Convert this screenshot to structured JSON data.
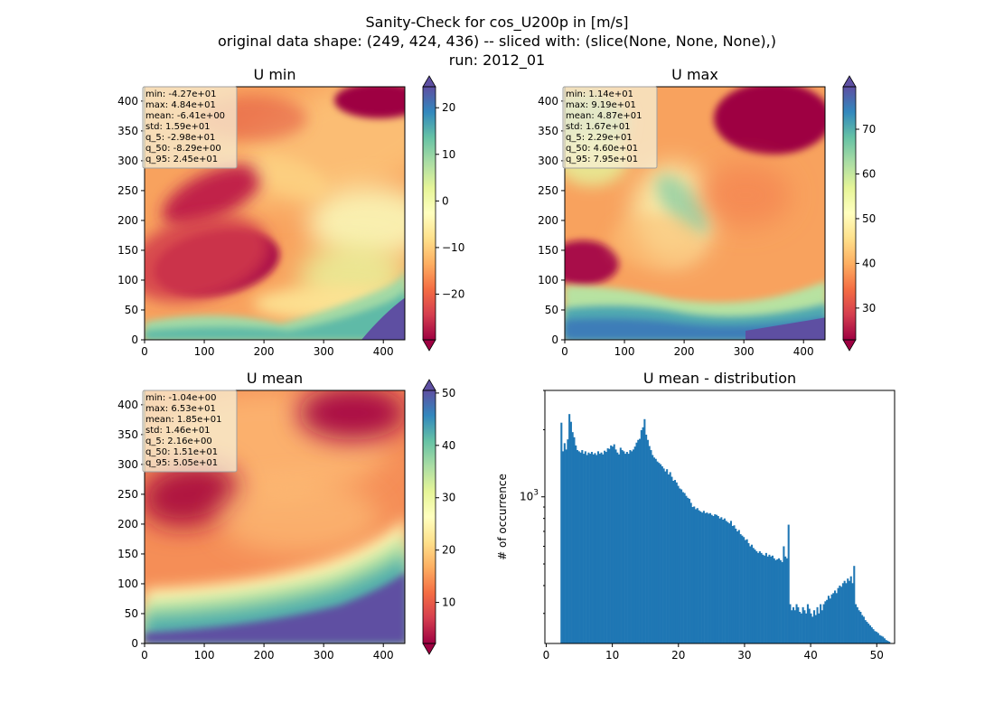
{
  "suptitle": [
    "Sanity-Check for cos_U200p in [m/s]",
    "original data shape: (249, 424, 436) -- sliced with: (slice(None, None, None),)",
    "run: 2012_01"
  ],
  "chart_data": [
    {
      "type": "heatmap",
      "title": "U min",
      "colormap": "Spectral",
      "xlim": [
        0,
        436
      ],
      "ylim": [
        0,
        424
      ],
      "xticks": [
        0,
        100,
        200,
        300,
        400
      ],
      "yticks": [
        0,
        50,
        100,
        150,
        200,
        250,
        300,
        350,
        400
      ],
      "colorbar": {
        "ticks": [
          -20,
          -10,
          0,
          10,
          20
        ],
        "range": [
          -29.8,
          24.5
        ]
      },
      "stats": [
        "min: -4.27e+01",
        "max: 4.84e+01",
        "mean: -6.41e+00",
        "std: 1.59e+01",
        "q_5: -2.98e+01",
        "q_50: -8.29e+00",
        "q_95: 2.45e+01"
      ]
    },
    {
      "type": "heatmap",
      "title": "U max",
      "colormap": "Spectral",
      "xlim": [
        0,
        436
      ],
      "ylim": [
        0,
        424
      ],
      "xticks": [
        0,
        100,
        200,
        300,
        400
      ],
      "yticks": [
        0,
        50,
        100,
        150,
        200,
        250,
        300,
        350,
        400
      ],
      "colorbar": {
        "ticks": [
          30,
          40,
          50,
          60,
          70
        ],
        "range": [
          22.9,
          79.5
        ]
      },
      "stats": [
        "min: 1.14e+01",
        "max: 9.19e+01",
        "mean: 4.87e+01",
        "std: 1.67e+01",
        "q_5: 2.29e+01",
        "q_50: 4.60e+01",
        "q_95: 7.95e+01"
      ]
    },
    {
      "type": "heatmap",
      "title": "U mean",
      "colormap": "Spectral",
      "xlim": [
        0,
        436
      ],
      "ylim": [
        0,
        424
      ],
      "xticks": [
        0,
        100,
        200,
        300,
        400
      ],
      "yticks": [
        0,
        50,
        100,
        150,
        200,
        250,
        300,
        350,
        400
      ],
      "colorbar": {
        "ticks": [
          10,
          20,
          30,
          40,
          50
        ],
        "range": [
          2.16,
          50.5
        ]
      },
      "stats": [
        "min: -1.04e+00",
        "max: 6.53e+01",
        "mean: 1.85e+01",
        "std: 1.46e+01",
        "q_5: 2.16e+00",
        "q_50: 1.51e+01",
        "q_95: 5.05e+01"
      ]
    },
    {
      "type": "bar",
      "title": "U mean - distribution",
      "ylabel": "# of occurrence",
      "yscale": "log",
      "xlim": [
        -0.2,
        52.7
      ],
      "ylim": [
        220,
        3000
      ],
      "xticks": [
        0,
        10,
        20,
        30,
        40,
        50
      ],
      "yticks_labeled": [
        {
          "value": 1000,
          "label": "10^3"
        }
      ],
      "color": "#1f77b4",
      "bins": {
        "start": 2.16,
        "width": 0.242,
        "counts": [
          2150,
          1600,
          1740,
          1630,
          1810,
          2350,
          2170,
          1950,
          1850,
          1700,
          1620,
          1600,
          1580,
          1620,
          1560,
          1600,
          1540,
          1580,
          1560,
          1590,
          1550,
          1570,
          1540,
          1600,
          1560,
          1580,
          1550,
          1610,
          1590,
          1650,
          1640,
          1700,
          1680,
          1720,
          1630,
          1580,
          1550,
          1660,
          1620,
          1600,
          1560,
          1590,
          1560,
          1620,
          1600,
          1630,
          1680,
          1750,
          1800,
          1820,
          1990,
          2050,
          2230,
          1900,
          1800,
          1690,
          1620,
          1540,
          1500,
          1480,
          1440,
          1420,
          1400,
          1370,
          1340,
          1300,
          1330,
          1260,
          1290,
          1230,
          1180,
          1190,
          1160,
          1120,
          1090,
          1080,
          1050,
          1040,
          1010,
          990,
          980,
          940,
          900,
          905,
          880,
          890,
          870,
          860,
          850,
          865,
          845,
          850,
          840,
          845,
          830,
          820,
          835,
          830,
          820,
          800,
          810,
          790,
          800,
          780,
          770,
          760,
          780,
          740,
          745,
          720,
          700,
          710,
          680,
          670,
          660,
          640,
          645,
          620,
          600,
          610,
          590,
          580,
          570,
          560,
          570,
          560,
          550,
          545,
          560,
          540,
          550,
          540,
          545,
          530,
          520,
          525,
          530,
          520,
          510,
          600,
          540,
          530,
          750,
          330,
          310,
          320,
          310,
          330,
          320,
          305,
          300,
          320,
          310,
          300,
          330,
          315,
          300,
          290,
          310,
          295,
          320,
          300,
          330,
          310,
          330,
          340,
          345,
          360,
          350,
          365,
          370,
          380,
          370,
          390,
          400,
          395,
          410,
          420,
          410,
          430,
          420,
          440,
          410,
          490,
          330,
          320,
          310,
          305,
          295,
          290,
          280,
          275,
          270,
          265,
          260,
          255,
          250,
          248,
          245,
          240,
          238,
          236,
          232,
          228,
          226,
          224
        ]
      }
    }
  ]
}
